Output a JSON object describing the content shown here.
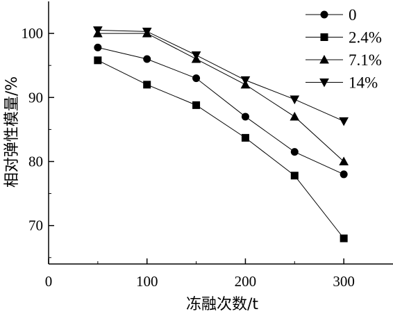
{
  "chart_data": {
    "type": "line",
    "title": "",
    "xlabel": "冻融次数/t",
    "ylabel": "相对弹性模量/%",
    "xlim": [
      0,
      350
    ],
    "ylim": [
      64,
      105
    ],
    "xticks": [
      0,
      100,
      200,
      300
    ],
    "yticks": [
      70,
      80,
      90,
      100
    ],
    "grid": false,
    "legend_position": "top-right",
    "x": [
      50,
      100,
      150,
      200,
      250,
      300
    ],
    "series": [
      {
        "name": "0",
        "marker": "circle",
        "values": [
          97.8,
          96.0,
          93.0,
          87.0,
          81.5,
          78.0
        ]
      },
      {
        "name": "2.4%",
        "marker": "square",
        "values": [
          95.8,
          92.0,
          88.8,
          83.7,
          77.8,
          68.0
        ]
      },
      {
        "name": "7.1%",
        "marker": "triangle-up",
        "values": [
          100.0,
          100.0,
          96.0,
          92.0,
          87.0,
          80.0
        ]
      },
      {
        "name": "14%",
        "marker": "triangle-down",
        "values": [
          100.5,
          100.3,
          96.6,
          92.7,
          89.7,
          86.3
        ]
      }
    ]
  }
}
